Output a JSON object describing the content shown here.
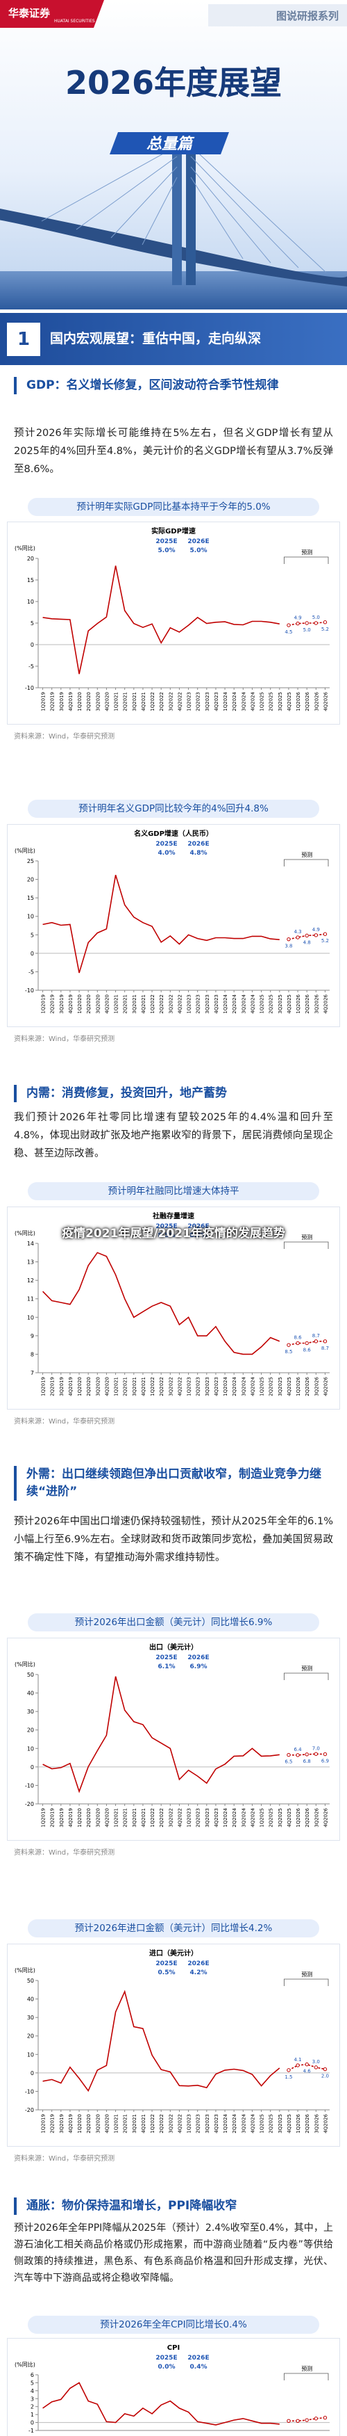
{
  "header": {
    "logo": "华泰证券",
    "logo_en": "HUATAI SECURITIES",
    "series": "图说研报系列",
    "title": "2026年度展望",
    "tag": "总量篇"
  },
  "section": {
    "number": "1",
    "title": "国内宏观展望：重估中国，走向纵深"
  },
  "blocks": [
    {
      "heading": "GDP：名义增长修复，区间波动符合季节性规律",
      "text": "预计2026年实际增长可能维持在5%左右，但名义GDP增长有望从2025年的4%回升至4.8%，美元计价的名义GDP增长有望从3.7%反弹至8.6%。"
    },
    {
      "heading": "内需：消费修复，投资回升，地产蓄势",
      "text": "我们预计2026年社零同比增速有望较2025年的4.4%温和回升至4.8%，体现出财政扩张及地产拖累收窄的背景下，居民消费倾向呈现企稳、甚至边际改善。"
    },
    {
      "heading": "外需：出口继续领跑但净出口贡献收窄，制造业竞争力继续“进阶”",
      "text": "预计2026年中国出口增速仍保持较强韧性，预计从2025年全年的6.1%小幅上行至6.9%左右。全球财政和货币政策同步宽松，叠加美国贸易政策不确定性下降，有望推动海外需求维持韧性。"
    },
    {
      "heading": "通胀：物价保持温和增长，PPI降幅收窄",
      "text": "预计2026年全年PPI降幅从2025年（预计）2.4%收窄至0.4%，其中，上游石油化工相关商品价格或仍形成拖累，而中游商业随着“反内卷”等供给侧政策的持续推进，黑色系、有色系商品价格温和回升形成支撑，光伏、汽车等中下游商品或将企稳收窄降幅。"
    }
  ],
  "captions": [
    "预计明年实际GDP同比基本持平于今年的5.0%",
    "预计明年名义GDP同比较今年的4%回升4.8%",
    "预计明年社融同比增速大体持平",
    "预计2026年出口金额（美元计）同比增长6.9%",
    "预计2026年进口金额（美元计）同比增长4.2%",
    "预计2026年全年CPI同比增长0.4%"
  ],
  "sources": [
    "资料来源：Wind，华泰研究预测",
    "资料来源：Wind，华泰研究预测",
    "资料来源：Wind，华泰研究预测",
    "资料来源：Wind，华泰研究预测",
    "资料来源：Wind，华泰研究预测"
  ],
  "overlay": "疫情2021年展望/2021年疫情的发展趋势",
  "chart_data": [
    {
      "type": "line",
      "title": "实际GDP增速",
      "ylabel": "(%同比)",
      "forecast_label": "预测",
      "annotation": {
        "headers": [
          "2025E",
          "2026E"
        ],
        "values": [
          "5.0%",
          "5.0%"
        ]
      },
      "categories": [
        "1Q2019",
        "2Q2019",
        "3Q2019",
        "4Q2019",
        "1Q2020",
        "2Q2020",
        "3Q2020",
        "4Q2020",
        "1Q2021",
        "2Q2021",
        "3Q2021",
        "4Q2021",
        "1Q2022",
        "2Q2022",
        "3Q2022",
        "4Q2022",
        "1Q2023",
        "2Q2023",
        "3Q2023",
        "4Q2023",
        "1Q2024",
        "2Q2024",
        "3Q2024",
        "4Q2024",
        "1Q2025",
        "2Q2025",
        "3Q2025",
        "4Q2025",
        "1Q2026",
        "2Q2026",
        "3Q2026",
        "4Q2026"
      ],
      "ylim": [
        -10,
        20
      ],
      "yticks": [
        -10,
        -5,
        0,
        5,
        10,
        15,
        20
      ],
      "series": [
        {
          "color": "#c00000",
          "values": [
            6.3,
            6.0,
            5.9,
            5.8,
            -6.8,
            3.2,
            4.9,
            6.4,
            18.3,
            7.9,
            4.9,
            4.0,
            4.8,
            0.4,
            3.9,
            2.9,
            4.5,
            6.3,
            4.9,
            5.2,
            5.3,
            4.7,
            4.6,
            5.4,
            5.4,
            5.2,
            4.8,
            null,
            null,
            null,
            null,
            null
          ]
        },
        {
          "color": "#c00000",
          "dashed": true,
          "values": [
            null,
            null,
            null,
            null,
            null,
            null,
            null,
            null,
            null,
            null,
            null,
            null,
            null,
            null,
            null,
            null,
            null,
            null,
            null,
            null,
            null,
            null,
            null,
            null,
            null,
            null,
            null,
            4.5,
            4.9,
            5.0,
            5.0,
            5.2
          ],
          "value_labels": [
            null,
            null,
            null,
            null,
            null,
            null,
            null,
            null,
            null,
            null,
            null,
            null,
            null,
            null,
            null,
            null,
            null,
            null,
            null,
            null,
            null,
            null,
            null,
            null,
            null,
            null,
            null,
            "4.5",
            "4.9",
            "5.0",
            "5.0",
            "5.2"
          ]
        }
      ]
    },
    {
      "type": "line",
      "title": "名义GDP增速（人民币）",
      "ylabel": "(%同比)",
      "forecast_label": "预测",
      "annotation": {
        "headers": [
          "2025E",
          "2026E"
        ],
        "values": [
          "4.0%",
          "4.8%"
        ]
      },
      "categories": [
        "1Q2019",
        "2Q2019",
        "3Q2019",
        "4Q2019",
        "1Q2020",
        "2Q2020",
        "3Q2020",
        "4Q2020",
        "1Q2021",
        "2Q2021",
        "3Q2021",
        "4Q2021",
        "1Q2022",
        "2Q2022",
        "3Q2022",
        "4Q2022",
        "1Q2023",
        "2Q2023",
        "3Q2023",
        "4Q2023",
        "1Q2024",
        "2Q2024",
        "3Q2024",
        "4Q2024",
        "1Q2025",
        "2Q2025",
        "3Q2025",
        "4Q2025",
        "1Q2026",
        "2Q2026",
        "3Q2026",
        "4Q2026"
      ],
      "ylim": [
        -10,
        25
      ],
      "yticks": [
        -10,
        -5,
        0,
        5,
        10,
        15,
        20,
        25
      ],
      "series": [
        {
          "color": "#c00000",
          "values": [
            7.8,
            8.3,
            7.6,
            7.8,
            -5.3,
            2.9,
            5.5,
            6.6,
            21.2,
            13.1,
            9.8,
            8.3,
            7.3,
            3.0,
            4.7,
            2.5,
            5.0,
            4.0,
            3.5,
            4.2,
            4.2,
            4.0,
            4.0,
            4.6,
            4.6,
            3.9,
            3.7,
            null,
            null,
            null,
            null,
            null
          ]
        },
        {
          "color": "#c00000",
          "dashed": true,
          "values": [
            null,
            null,
            null,
            null,
            null,
            null,
            null,
            null,
            null,
            null,
            null,
            null,
            null,
            null,
            null,
            null,
            null,
            null,
            null,
            null,
            null,
            null,
            null,
            null,
            null,
            null,
            null,
            3.8,
            4.3,
            4.8,
            4.9,
            5.2
          ],
          "value_labels": [
            null,
            null,
            null,
            null,
            null,
            null,
            null,
            null,
            null,
            null,
            null,
            null,
            null,
            null,
            null,
            null,
            null,
            null,
            null,
            null,
            null,
            null,
            null,
            null,
            null,
            null,
            null,
            "3.8",
            "4.3",
            "4.8",
            "4.9",
            "5.2"
          ]
        }
      ]
    },
    {
      "type": "line",
      "title": "社融存量增速",
      "ylabel": "(%同比)",
      "forecast_label": "预测",
      "annotation": {
        "headers": [
          "2025E",
          "2026E"
        ],
        "values": [
          "8.5%",
          "8.7%"
        ]
      },
      "categories": [
        "1Q2019",
        "2Q2019",
        "3Q2019",
        "4Q2019",
        "1Q2020",
        "2Q2020",
        "3Q2020",
        "4Q2020",
        "1Q2021",
        "2Q2021",
        "3Q2021",
        "4Q2021",
        "1Q2022",
        "2Q2022",
        "3Q2022",
        "4Q2022",
        "1Q2023",
        "2Q2023",
        "3Q2023",
        "4Q2023",
        "1Q2024",
        "2Q2024",
        "3Q2024",
        "4Q2024",
        "1Q2025",
        "2Q2025",
        "3Q2025",
        "4Q2025",
        "1Q2026",
        "2Q2026",
        "3Q2026",
        "4Q2026"
      ],
      "ylim": [
        7,
        14
      ],
      "yticks": [
        7,
        8,
        9,
        10,
        11,
        12,
        13,
        14
      ],
      "series": [
        {
          "color": "#c00000",
          "values": [
            11.4,
            10.9,
            10.8,
            10.7,
            11.5,
            12.8,
            13.5,
            13.3,
            12.3,
            11.0,
            10.0,
            10.3,
            10.6,
            10.8,
            10.6,
            9.6,
            10.0,
            9.0,
            9.0,
            9.5,
            8.7,
            8.1,
            8.0,
            8.0,
            8.4,
            8.9,
            8.7,
            null,
            null,
            null,
            null,
            null
          ]
        },
        {
          "color": "#c00000",
          "dashed": true,
          "values": [
            null,
            null,
            null,
            null,
            null,
            null,
            null,
            null,
            null,
            null,
            null,
            null,
            null,
            null,
            null,
            null,
            null,
            null,
            null,
            null,
            null,
            null,
            null,
            null,
            null,
            null,
            null,
            8.5,
            8.6,
            8.6,
            8.7,
            8.7
          ],
          "value_labels": [
            null,
            null,
            null,
            null,
            null,
            null,
            null,
            null,
            null,
            null,
            null,
            null,
            null,
            null,
            null,
            null,
            null,
            null,
            null,
            null,
            null,
            null,
            null,
            null,
            null,
            null,
            null,
            "8.5",
            "8.6",
            "8.6",
            "8.7",
            "8.7"
          ]
        }
      ]
    },
    {
      "type": "line",
      "title": "出口（美元计）",
      "ylabel": "(%同比)",
      "forecast_label": "预测",
      "annotation": {
        "headers": [
          "2025E",
          "2026E"
        ],
        "values": [
          "6.1%",
          "6.9%"
        ]
      },
      "categories": [
        "1Q2019",
        "2Q2019",
        "3Q2019",
        "4Q2019",
        "1Q2020",
        "2Q2020",
        "3Q2020",
        "4Q2020",
        "1Q2021",
        "2Q2021",
        "3Q2021",
        "4Q2021",
        "1Q2022",
        "2Q2022",
        "3Q2022",
        "4Q2022",
        "1Q2023",
        "2Q2023",
        "3Q2023",
        "4Q2023",
        "1Q2024",
        "2Q2024",
        "3Q2024",
        "4Q2024",
        "1Q2025",
        "2Q2025",
        "3Q2025",
        "4Q2025",
        "1Q2026",
        "2Q2026",
        "3Q2026",
        "4Q2026"
      ],
      "ylim": [
        -20,
        50
      ],
      "yticks": [
        -20,
        -10,
        0,
        10,
        20,
        30,
        40,
        50
      ],
      "series": [
        {
          "color": "#c00000",
          "values": [
            1.4,
            -1.0,
            -0.4,
            1.9,
            -13.3,
            0.1,
            8.8,
            17.1,
            49,
            30.7,
            24.5,
            22.9,
            15.8,
            12.9,
            10.0,
            -6.8,
            -1.8,
            -5.0,
            -8.8,
            -1.1,
            1.5,
            5.8,
            6.0,
            10.0,
            5.8,
            6.0,
            6.6,
            null,
            null,
            null,
            null,
            null
          ]
        },
        {
          "color": "#c00000",
          "dashed": true,
          "values": [
            null,
            null,
            null,
            null,
            null,
            null,
            null,
            null,
            null,
            null,
            null,
            null,
            null,
            null,
            null,
            null,
            null,
            null,
            null,
            null,
            null,
            null,
            null,
            null,
            null,
            null,
            null,
            6.5,
            6.4,
            6.8,
            7.0,
            6.9
          ],
          "value_labels": [
            null,
            null,
            null,
            null,
            null,
            null,
            null,
            null,
            null,
            null,
            null,
            null,
            null,
            null,
            null,
            null,
            null,
            null,
            null,
            null,
            null,
            null,
            null,
            null,
            null,
            null,
            null,
            "6.5",
            "6.4",
            "6.8",
            "7.0",
            "6.9"
          ]
        }
      ]
    },
    {
      "type": "line",
      "title": "进口（美元计）",
      "ylabel": "(%同比)",
      "forecast_label": "预测",
      "annotation": {
        "headers": [
          "2025E",
          "2026E"
        ],
        "values": [
          "0.5%",
          "4.2%"
        ]
      },
      "categories": [
        "1Q2019",
        "2Q2019",
        "3Q2019",
        "4Q2019",
        "1Q2020",
        "2Q2020",
        "3Q2020",
        "4Q2020",
        "1Q2021",
        "2Q2021",
        "3Q2021",
        "4Q2021",
        "1Q2022",
        "2Q2022",
        "3Q2022",
        "4Q2022",
        "1Q2023",
        "2Q2023",
        "3Q2023",
        "4Q2023",
        "1Q2024",
        "2Q2024",
        "3Q2024",
        "4Q2024",
        "1Q2025",
        "2Q2025",
        "3Q2025",
        "4Q2025",
        "1Q2026",
        "2Q2026",
        "3Q2026",
        "4Q2026"
      ],
      "ylim": [
        -20,
        50
      ],
      "yticks": [
        -20,
        -10,
        0,
        10,
        20,
        30,
        40,
        50
      ],
      "series": [
        {
          "color": "#c00000",
          "values": [
            -4.5,
            -3.6,
            -5.5,
            3.1,
            -3.0,
            -9.7,
            1.5,
            4.0,
            33,
            44,
            25,
            24,
            9.6,
            1.8,
            0.5,
            -6.9,
            -7.1,
            -6.7,
            -8.0,
            -0.7,
            1.5,
            2.0,
            1.3,
            -0.8,
            -7.0,
            -1.5,
            2.6,
            null,
            null,
            null,
            null,
            null
          ]
        },
        {
          "color": "#c00000",
          "dashed": true,
          "values": [
            null,
            null,
            null,
            null,
            null,
            null,
            null,
            null,
            null,
            null,
            null,
            null,
            null,
            null,
            null,
            null,
            null,
            null,
            null,
            null,
            null,
            null,
            null,
            null,
            null,
            null,
            null,
            1.5,
            4.1,
            4.6,
            3.0,
            2.0
          ],
          "value_labels": [
            null,
            null,
            null,
            null,
            null,
            null,
            null,
            null,
            null,
            null,
            null,
            null,
            null,
            null,
            null,
            null,
            null,
            null,
            null,
            null,
            null,
            null,
            null,
            null,
            null,
            null,
            null,
            "1.5",
            "4.1",
            "4.6",
            "3.0",
            "2.0"
          ]
        }
      ]
    },
    {
      "type": "line",
      "title": "CPI",
      "ylabel": "(%同比)",
      "forecast_label": "预测",
      "annotation": {
        "headers": [
          "2025E",
          "2026E"
        ],
        "values": [
          "0.0%",
          "0.4%"
        ]
      },
      "ylim": [
        -1,
        6
      ],
      "yticks": [
        -1,
        0,
        1,
        2,
        3,
        4,
        5,
        6
      ],
      "series": [
        {
          "color": "#c00000",
          "values": [
            1.8,
            2.6,
            2.9,
            4.3,
            5.0,
            2.7,
            2.3,
            0.1,
            0.0,
            1.1,
            0.8,
            1.8,
            1.1,
            2.2,
            2.7,
            1.8,
            1.3,
            0.1,
            -0.1,
            -0.3,
            0.0,
            0.3,
            0.5,
            0.2,
            -0.1,
            -0.1,
            -0.2,
            null,
            null,
            null,
            null,
            null
          ]
        },
        {
          "color": "#c00000",
          "dashed": true,
          "values": [
            null,
            null,
            null,
            null,
            null,
            null,
            null,
            null,
            null,
            null,
            null,
            null,
            null,
            null,
            null,
            null,
            null,
            null,
            null,
            null,
            null,
            null,
            null,
            null,
            null,
            null,
            null,
            0.2,
            0.2,
            0.3,
            0.5,
            0.6
          ]
        }
      ]
    }
  ]
}
